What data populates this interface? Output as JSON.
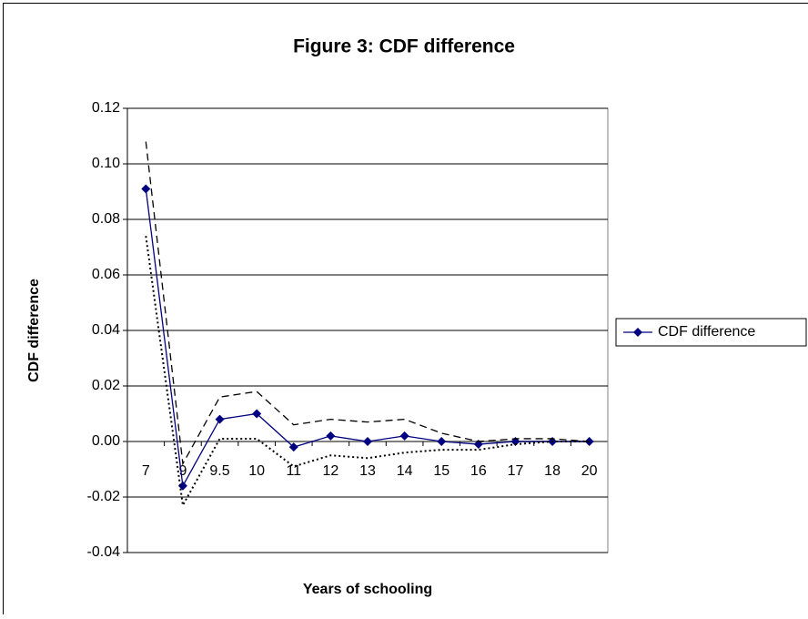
{
  "chart_data": {
    "type": "line",
    "title": "Figure 3: CDF difference",
    "x_label": "Years of schooling",
    "y_label": "CDF difference",
    "categories": [
      "7",
      "9",
      "9.5",
      "10",
      "11",
      "12",
      "13",
      "14",
      "15",
      "16",
      "17",
      "18",
      "20"
    ],
    "series": [
      {
        "name": "CDF difference",
        "color": "#000080",
        "style": "solid",
        "marker": "diamond",
        "values": [
          0.091,
          -0.016,
          0.008,
          0.01,
          -0.002,
          0.002,
          0.0,
          0.002,
          0.0,
          -0.001,
          0.0,
          0.0,
          0.0
        ]
      },
      {
        "color": "#000000",
        "style": "dashed",
        "values": [
          0.108,
          -0.008,
          0.016,
          0.018,
          0.006,
          0.008,
          0.007,
          0.008,
          0.003,
          0.0,
          0.001,
          0.001,
          0.0
        ]
      },
      {
        "color": "#000000",
        "style": "dotted",
        "values": [
          0.074,
          -0.023,
          0.001,
          0.001,
          -0.009,
          -0.005,
          -0.006,
          -0.004,
          -0.003,
          -0.003,
          -0.001,
          0.0,
          0.0
        ]
      }
    ],
    "ylim": [
      -0.04,
      0.12
    ],
    "yticks": [
      -0.04,
      -0.02,
      {
        "value": 0,
        "label": "0.00"
      },
      0.02,
      0.04,
      0.06,
      0.08,
      {
        "value": 0.1,
        "label": "0.10"
      },
      0.12
    ],
    "grid": true,
    "legend": "right"
  }
}
